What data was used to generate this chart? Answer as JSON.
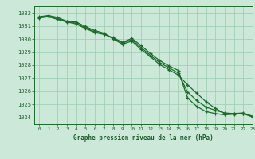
{
  "xlabel": "Graphe pression niveau de la mer (hPa)",
  "xlim": [
    -0.5,
    23
  ],
  "ylim": [
    1023.5,
    1032.5
  ],
  "yticks": [
    1024,
    1025,
    1026,
    1027,
    1028,
    1029,
    1030,
    1031,
    1032
  ],
  "xticks": [
    0,
    1,
    2,
    3,
    4,
    5,
    6,
    7,
    8,
    9,
    10,
    11,
    12,
    13,
    14,
    15,
    16,
    17,
    18,
    19,
    20,
    21,
    22,
    23
  ],
  "bg_color": "#cce8d8",
  "grid_color": "#99ccb0",
  "line_color": "#1a6b2a",
  "line1": [
    1031.7,
    1031.8,
    1031.65,
    1031.35,
    1031.3,
    1030.95,
    1030.65,
    1030.45,
    1030.0,
    1029.6,
    1029.85,
    1029.2,
    1028.65,
    1028.05,
    1027.65,
    1027.25,
    1026.5,
    1025.85,
    1025.2,
    1024.7,
    1024.3,
    1024.3,
    1024.3,
    1024.05
  ],
  "line2": [
    1031.65,
    1031.75,
    1031.55,
    1031.35,
    1031.2,
    1030.85,
    1030.55,
    1030.4,
    1030.05,
    1029.7,
    1029.95,
    1029.35,
    1028.75,
    1028.2,
    1027.8,
    1027.4,
    1025.95,
    1025.3,
    1024.8,
    1024.55,
    1024.35,
    1024.3,
    1024.35,
    1024.1
  ],
  "line3": [
    1031.6,
    1031.7,
    1031.5,
    1031.3,
    1031.15,
    1030.8,
    1030.5,
    1030.35,
    1030.1,
    1029.75,
    1030.05,
    1029.5,
    1028.9,
    1028.35,
    1027.95,
    1027.6,
    1025.5,
    1024.85,
    1024.45,
    1024.3,
    1024.2,
    1024.25,
    1024.3,
    1024.05
  ]
}
